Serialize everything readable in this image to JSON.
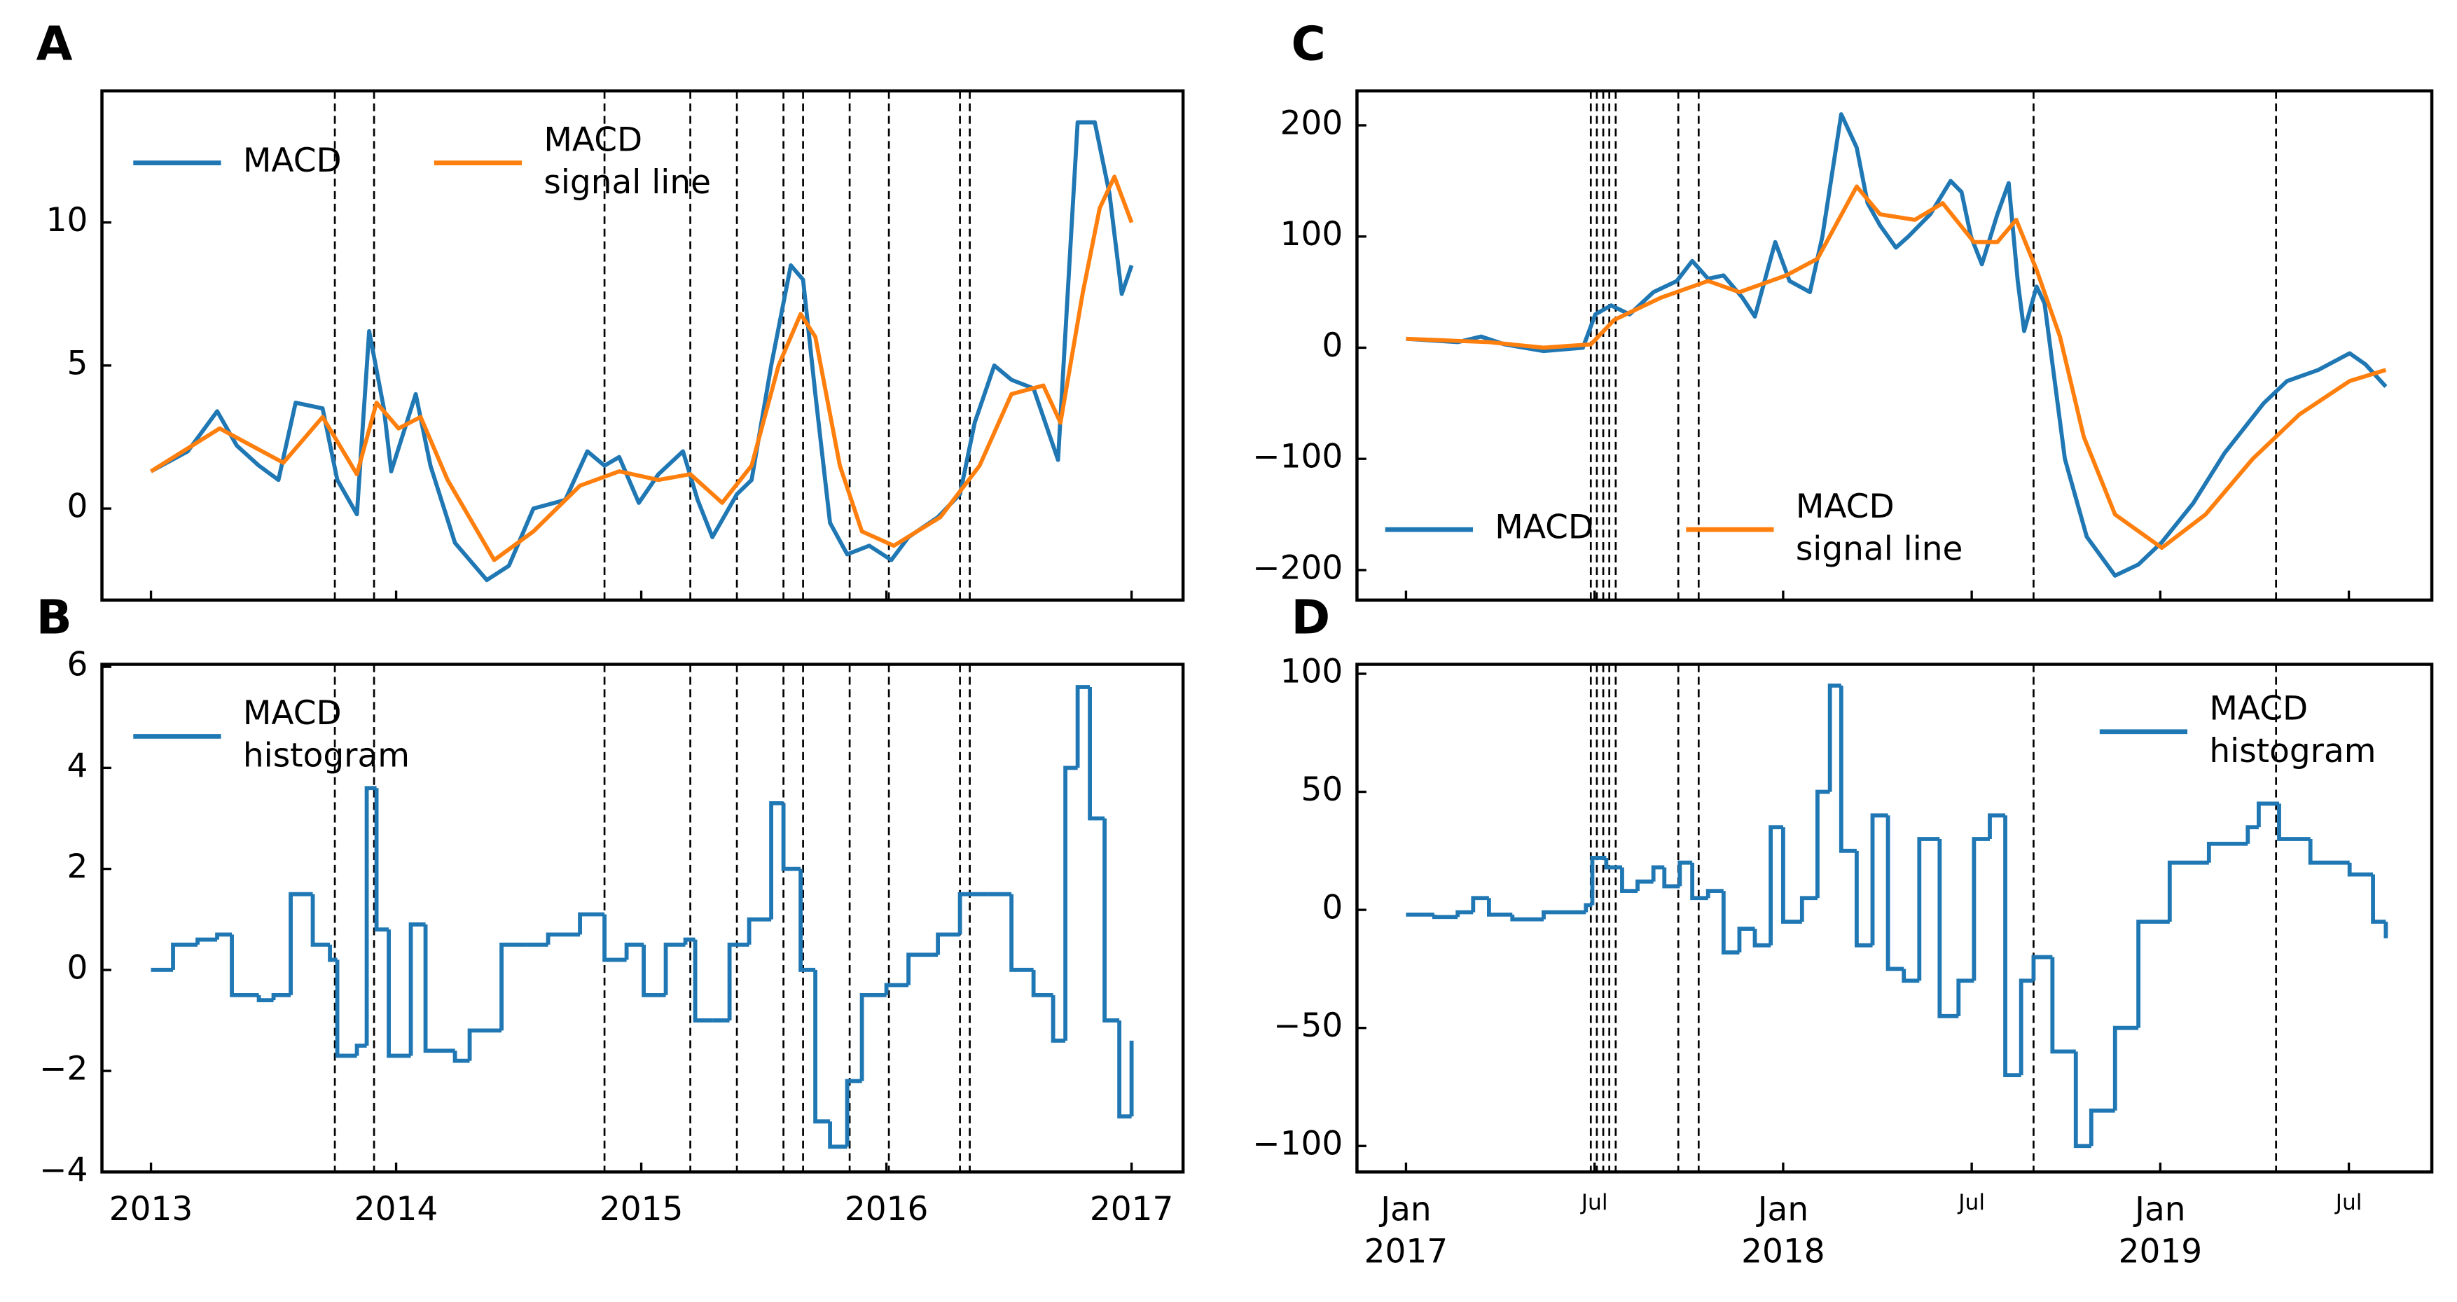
{
  "chart_data": [
    {
      "type": "line",
      "label": "A",
      "legend": "upper left",
      "xlim": [
        2012.8,
        2017.21
      ],
      "ylim": [
        -3.2,
        14.6
      ],
      "yticks": [
        0,
        5,
        10
      ],
      "vlines": [
        2013.75,
        2013.91,
        2014.85,
        2015.2,
        2015.39,
        2015.58,
        2015.66,
        2015.85,
        2016.01,
        2016.3,
        2016.34
      ],
      "series": [
        {
          "name": "MACD",
          "color": "#1f77b4",
          "x": [
            2013.0,
            2013.15,
            2013.27,
            2013.35,
            2013.44,
            2013.52,
            2013.59,
            2013.7,
            2013.76,
            2013.84,
            2013.89,
            2013.95,
            2013.98,
            2014.08,
            2014.14,
            2014.24,
            2014.37,
            2014.46,
            2014.56,
            2014.69,
            2014.78,
            2014.85,
            2014.91,
            2014.99,
            2015.07,
            2015.17,
            2015.23,
            2015.29,
            2015.39,
            2015.45,
            2015.53,
            2015.61,
            2015.66,
            2015.71,
            2015.77,
            2015.84,
            2015.93,
            2016.02,
            2016.09,
            2016.21,
            2016.3,
            2016.36,
            2016.44,
            2016.51,
            2016.6,
            2016.7,
            2016.78,
            2016.85,
            2016.91,
            2016.96,
            2017.0
          ],
          "values": [
            1.3,
            2.0,
            3.4,
            2.2,
            1.5,
            1.0,
            3.7,
            3.5,
            1.0,
            -0.2,
            6.2,
            3.5,
            1.3,
            4.0,
            1.5,
            -1.2,
            -2.5,
            -2.0,
            0.0,
            0.3,
            2.0,
            1.5,
            1.8,
            0.2,
            1.2,
            2.0,
            0.3,
            -1.0,
            0.5,
            1.0,
            5.0,
            8.5,
            8.0,
            4.0,
            -0.5,
            -1.6,
            -1.3,
            -1.8,
            -1.0,
            -0.3,
            0.5,
            3.0,
            5.0,
            4.5,
            4.2,
            1.7,
            13.5,
            13.5,
            11.0,
            7.5,
            8.5
          ]
        },
        {
          "name": "MACD\nsignal line",
          "color": "#ff7f0e",
          "x": [
            2013.0,
            2013.28,
            2013.54,
            2013.7,
            2013.84,
            2013.92,
            2014.01,
            2014.1,
            2014.21,
            2014.4,
            2014.56,
            2014.75,
            2014.91,
            2015.07,
            2015.2,
            2015.33,
            2015.45,
            2015.56,
            2015.65,
            2015.71,
            2015.81,
            2015.9,
            2016.03,
            2016.22,
            2016.38,
            2016.51,
            2016.64,
            2016.71,
            2016.8,
            2016.87,
            2016.93,
            2017.0
          ],
          "values": [
            1.3,
            2.8,
            1.6,
            3.2,
            1.2,
            3.7,
            2.8,
            3.2,
            1.0,
            -1.8,
            -0.8,
            0.8,
            1.3,
            1.0,
            1.2,
            0.2,
            1.5,
            5.0,
            6.8,
            6.0,
            1.5,
            -0.8,
            -1.3,
            -0.3,
            1.5,
            4.0,
            4.3,
            3.0,
            7.5,
            10.5,
            11.6,
            10.0
          ]
        }
      ]
    },
    {
      "type": "step",
      "label": "B",
      "legend": "upper left",
      "xlim": [
        2012.8,
        2017.21
      ],
      "ylim": [
        -4,
        6.05
      ],
      "xticks": [
        2013,
        2014,
        2015,
        2016,
        2017
      ],
      "yticks": [
        {
          "value": -4,
          "label": "−4"
        },
        {
          "value": -2,
          "label": "−2"
        },
        0,
        2,
        4,
        6
      ],
      "vlines": [
        2013.75,
        2013.91,
        2014.85,
        2015.2,
        2015.39,
        2015.58,
        2015.66,
        2015.85,
        2016.01,
        2016.3,
        2016.34
      ],
      "series": [
        {
          "name": "MACD\nhistogram",
          "color": "#1f77b4",
          "x": [
            2013.0,
            2013.09,
            2013.19,
            2013.27,
            2013.33,
            2013.44,
            2013.5,
            2013.57,
            2013.66,
            2013.73,
            2013.76,
            2013.84,
            2013.88,
            2013.92,
            2013.97,
            2014.06,
            2014.12,
            2014.24,
            2014.3,
            2014.43,
            2014.53,
            2014.62,
            2014.75,
            2014.85,
            2014.94,
            2015.01,
            2015.1,
            2015.18,
            2015.22,
            2015.29,
            2015.36,
            2015.44,
            2015.53,
            2015.58,
            2015.65,
            2015.71,
            2015.77,
            2015.84,
            2015.9,
            2016.0,
            2016.09,
            2016.21,
            2016.3,
            2016.41,
            2016.51,
            2016.6,
            2016.68,
            2016.73,
            2016.78,
            2016.83,
            2016.89,
            2016.95,
            2017.0
          ],
          "values": [
            0,
            0.5,
            0.6,
            0.7,
            -0.5,
            -0.6,
            -0.5,
            1.5,
            0.5,
            0.2,
            -1.7,
            -1.5,
            3.6,
            0.8,
            -1.7,
            0.9,
            -1.6,
            -1.8,
            -1.2,
            0.5,
            0.5,
            0.7,
            1.1,
            0.2,
            0.5,
            -0.5,
            0.5,
            0.6,
            -1.0,
            -1.0,
            0.5,
            1.0,
            3.3,
            2.0,
            0.0,
            -3.0,
            -3.5,
            -2.2,
            -0.5,
            -0.3,
            0.3,
            0.7,
            1.5,
            1.5,
            0.0,
            -0.5,
            -1.4,
            4.0,
            5.6,
            3.0,
            -1.0,
            -2.9,
            -1.4
          ]
        }
      ]
    },
    {
      "type": "line",
      "label": "C",
      "legend": "lower left",
      "xlim": [
        2016.87,
        2019.72
      ],
      "ylim": [
        -227,
        231
      ],
      "yticks": [
        {
          "value": -200,
          "label": "−200"
        },
        {
          "value": -100,
          "label": "−100"
        },
        0,
        100,
        200
      ],
      "vlines": [
        2017.49,
        2017.506,
        2017.523,
        2017.539,
        2017.556,
        2017.722,
        2017.776,
        2018.664,
        2019.307
      ],
      "series": [
        {
          "name": "MACD",
          "color": "#1f77b4",
          "x": [
            2017.0,
            2017.137,
            2017.199,
            2017.261,
            2017.365,
            2017.469,
            2017.502,
            2017.544,
            2017.593,
            2017.656,
            2017.718,
            2017.759,
            2017.801,
            2017.842,
            2017.892,
            2017.925,
            2017.979,
            2018.017,
            2018.071,
            2018.104,
            2018.154,
            2018.195,
            2018.224,
            2018.257,
            2018.299,
            2018.332,
            2018.39,
            2018.444,
            2018.473,
            2018.498,
            2018.527,
            2018.568,
            2018.598,
            2018.622,
            2018.639,
            2018.672,
            2018.693,
            2018.747,
            2018.805,
            2018.88,
            2018.942,
            2019.004,
            2019.087,
            2019.17,
            2019.274,
            2019.336,
            2019.419,
            2019.502,
            2019.544,
            2019.598
          ],
          "values": [
            8,
            5,
            10,
            3,
            -3,
            0,
            30,
            38,
            30,
            50,
            60,
            78,
            62,
            65,
            45,
            28,
            95,
            60,
            50,
            100,
            210,
            180,
            130,
            110,
            90,
            100,
            120,
            150,
            140,
            100,
            75,
            120,
            148,
            60,
            15,
            55,
            40,
            -100,
            -170,
            -205,
            -195,
            -175,
            -140,
            -95,
            -50,
            -30,
            -20,
            -5,
            -15,
            -35
          ]
        },
        {
          "name": "MACD\nsignal line",
          "color": "#ff7f0e",
          "x": [
            2017.0,
            2017.22,
            2017.365,
            2017.49,
            2017.552,
            2017.676,
            2017.801,
            2017.884,
            2018.008,
            2018.091,
            2018.195,
            2018.257,
            2018.349,
            2018.423,
            2018.506,
            2018.568,
            2018.618,
            2018.672,
            2018.734,
            2018.797,
            2018.88,
            2019.004,
            2019.12,
            2019.245,
            2019.369,
            2019.502,
            2019.598
          ],
          "values": [
            8,
            5,
            0,
            3,
            25,
            45,
            60,
            50,
            65,
            80,
            145,
            120,
            115,
            130,
            95,
            95,
            115,
            70,
            10,
            -80,
            -150,
            -180,
            -150,
            -100,
            -60,
            -30,
            -20
          ]
        }
      ]
    },
    {
      "type": "step",
      "label": "D",
      "legend": "upper right",
      "xlim": [
        2016.87,
        2019.72
      ],
      "ylim": [
        -111,
        104
      ],
      "xticks": [
        {
          "value": 2017,
          "label": "Jan\n2017"
        },
        {
          "value": 2017.5,
          "label": "Jul"
        },
        {
          "value": 2018,
          "label": "Jan\n2018"
        },
        {
          "value": 2018.5,
          "label": "Jul"
        },
        {
          "value": 2019,
          "label": "Jan\n2019"
        },
        {
          "value": 2019.5,
          "label": "Jul"
        }
      ],
      "yticks": [
        {
          "value": -100,
          "label": "−100"
        },
        {
          "value": -50,
          "label": "−50"
        },
        0,
        50,
        100
      ],
      "vlines": [
        2017.49,
        2017.506,
        2017.523,
        2017.539,
        2017.556,
        2017.722,
        2017.776,
        2018.664,
        2019.307
      ],
      "series": [
        {
          "name": "MACD\nhistogram",
          "color": "#1f77b4",
          "x": [
            2017.0,
            2017.075,
            2017.137,
            2017.178,
            2017.22,
            2017.282,
            2017.365,
            2017.477,
            2017.494,
            2017.531,
            2017.573,
            2017.614,
            2017.656,
            2017.685,
            2017.726,
            2017.759,
            2017.801,
            2017.842,
            2017.884,
            2017.925,
            2017.967,
            2018.0,
            2018.05,
            2018.091,
            2018.124,
            2018.154,
            2018.195,
            2018.237,
            2018.278,
            2018.32,
            2018.361,
            2018.415,
            2018.465,
            2018.506,
            2018.548,
            2018.589,
            2018.631,
            2018.664,
            2018.714,
            2018.776,
            2018.817,
            2018.88,
            2018.942,
            2019.025,
            2019.129,
            2019.232,
            2019.261,
            2019.315,
            2019.398,
            2019.502,
            2019.564,
            2019.598
          ],
          "values": [
            -2,
            -3,
            -1,
            5,
            -2,
            -4,
            -1,
            2,
            22,
            18,
            8,
            12,
            18,
            10,
            20,
            5,
            8,
            -18,
            -8,
            -15,
            35,
            -5,
            5,
            50,
            95,
            25,
            -15,
            40,
            -25,
            -30,
            30,
            -45,
            -30,
            30,
            40,
            -70,
            -30,
            -20,
            -60,
            -100,
            -85,
            -50,
            -5,
            20,
            28,
            35,
            45,
            30,
            20,
            15,
            -5,
            -12
          ]
        }
      ]
    }
  ]
}
